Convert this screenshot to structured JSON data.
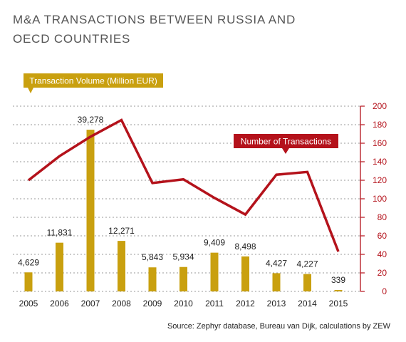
{
  "title_line1": "M&A TRANSACTIONS BETWEEN RUSSIA AND",
  "title_line2": "OECD COUNTRIES",
  "source": "Source: Zephyr database, Bureau van Dijk, calculations by ZEW",
  "colors": {
    "bar": "#c9a00f",
    "line": "#b4121b",
    "grid": "#999999",
    "text": "#222222",
    "title": "#555555"
  },
  "chart_data": {
    "type": "bar+line",
    "categories": [
      "2005",
      "2006",
      "2007",
      "2008",
      "2009",
      "2010",
      "2011",
      "2012",
      "2013",
      "2014",
      "2015"
    ],
    "series": [
      {
        "name": "Transaction Volume (Million EUR)",
        "type": "bar",
        "values": [
          4629,
          11831,
          39278,
          12271,
          5843,
          5934,
          9409,
          8498,
          4427,
          4227,
          339
        ],
        "value_labels": [
          "4,629",
          "11,831",
          "39,278",
          "12,271",
          "5,843",
          "5,934",
          "9,409",
          "8,498",
          "4,427",
          "4,227",
          "339"
        ]
      },
      {
        "name": "Number of Transactions",
        "type": "line",
        "axis": "right",
        "values": [
          120,
          146,
          167,
          185,
          117,
          121,
          101,
          83,
          126,
          129,
          43
        ]
      }
    ],
    "y2_ticks": [
      0,
      20,
      40,
      60,
      80,
      100,
      120,
      140,
      160,
      180,
      200
    ],
    "y2lim": [
      0,
      200
    ],
    "ylim": [
      0,
      45000
    ],
    "grid": true,
    "legend": "callout-labels"
  }
}
